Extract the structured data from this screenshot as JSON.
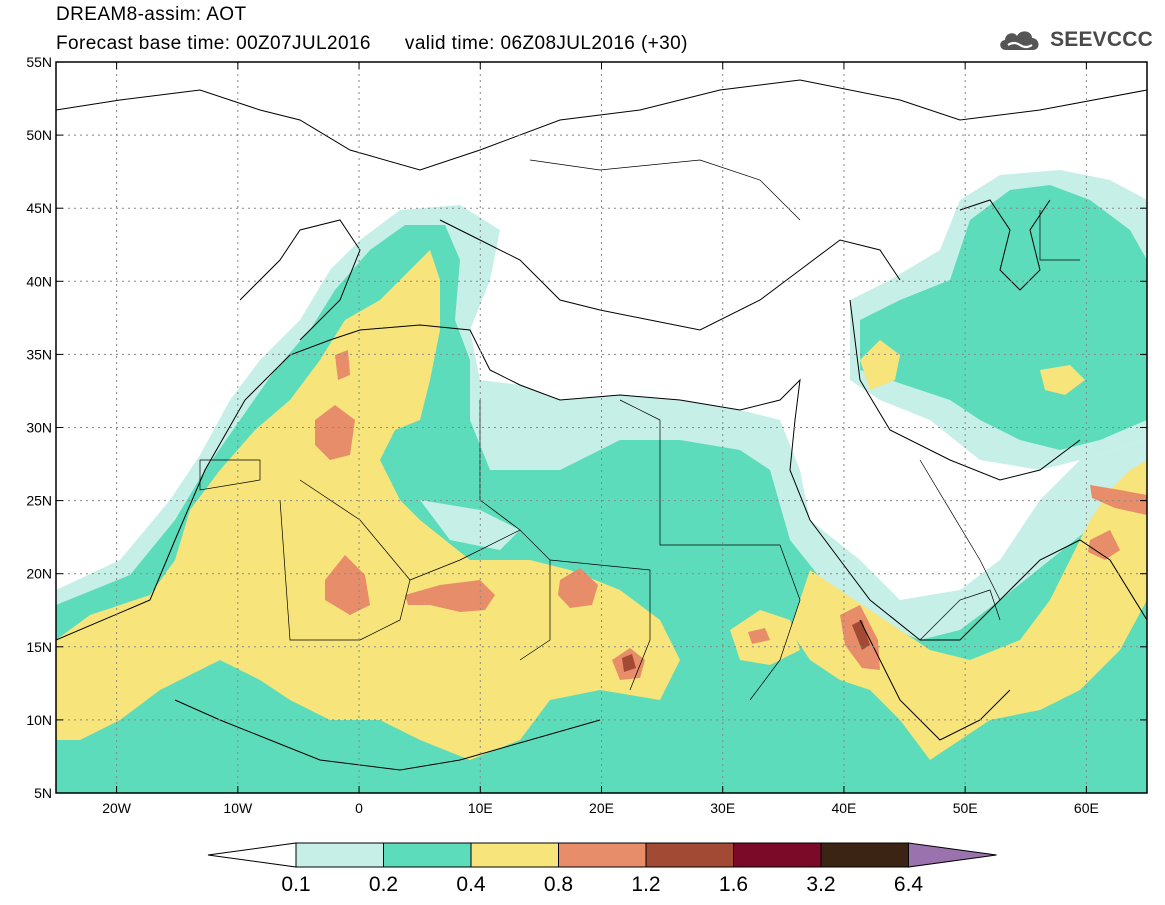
{
  "header": {
    "title": "DREAM8-assim: AOT",
    "subtitle": "Forecast base time: 00Z07JUL2016      valid time: 06Z08JUL2016 (+30)"
  },
  "brand": {
    "name": "SEEVCCC",
    "icon": "cloud-icon",
    "color": "#4a4a4a"
  },
  "map": {
    "lon_range": [
      -25,
      65
    ],
    "lat_range": [
      5,
      55
    ],
    "lon_ticks": [
      {
        "value": -20,
        "label": "20W"
      },
      {
        "value": -10,
        "label": "10W"
      },
      {
        "value": 0,
        "label": "0"
      },
      {
        "value": 10,
        "label": "10E"
      },
      {
        "value": 20,
        "label": "20E"
      },
      {
        "value": 30,
        "label": "30E"
      },
      {
        "value": 40,
        "label": "40E"
      },
      {
        "value": 50,
        "label": "50E"
      },
      {
        "value": 60,
        "label": "60E"
      }
    ],
    "lat_ticks": [
      {
        "value": 5,
        "label": "5N"
      },
      {
        "value": 10,
        "label": "10N"
      },
      {
        "value": 15,
        "label": "15N"
      },
      {
        "value": 20,
        "label": "20N"
      },
      {
        "value": 25,
        "label": "25N"
      },
      {
        "value": 30,
        "label": "30N"
      },
      {
        "value": 35,
        "label": "35N"
      },
      {
        "value": 40,
        "label": "40N"
      },
      {
        "value": 45,
        "label": "45N"
      },
      {
        "value": 50,
        "label": "50N"
      },
      {
        "value": 55,
        "label": "55N"
      }
    ],
    "gridlines": true
  },
  "legend": {
    "colors": [
      "#ffffff",
      "#c6efe8",
      "#5ddcbb",
      "#f7e47a",
      "#e88d6a",
      "#a34a34",
      "#7a0a28",
      "#3b2414",
      "#9a72ae"
    ],
    "labels": [
      "0.1",
      "0.2",
      "0.4",
      "0.8",
      "1.2",
      "1.6",
      "3.2",
      "6.4"
    ]
  }
}
